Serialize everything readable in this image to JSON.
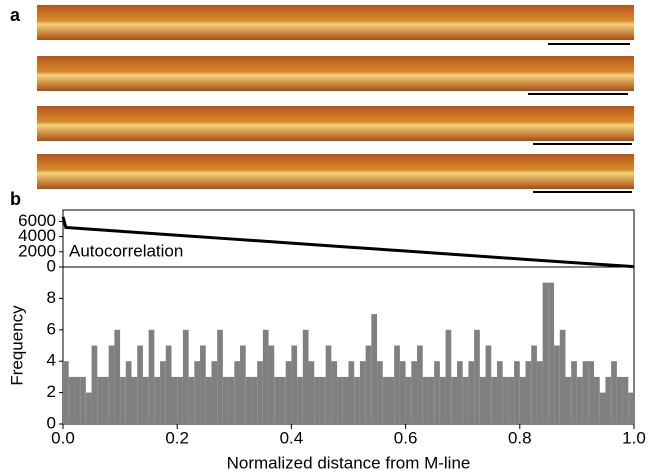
{
  "panel_labels": [
    "a",
    "b"
  ],
  "chart_data": [
    {
      "type": "line",
      "annotation": "Autocorrelation",
      "color": "#000000",
      "x": [
        0,
        0.005,
        0.1,
        0.2,
        0.3,
        0.4,
        0.5,
        0.6,
        0.7,
        0.8,
        0.9,
        1.0
      ],
      "values": [
        6600,
        5200,
        4700,
        4180,
        3660,
        3140,
        2620,
        2100,
        1580,
        1060,
        540,
        50
      ],
      "xlim": [
        0,
        1
      ],
      "ylim": [
        0,
        7500
      ],
      "yticks": [
        0,
        2000,
        4000,
        6000
      ]
    },
    {
      "type": "histogram",
      "x_label": "Normalized distance from M-line",
      "y_label": "Frequency",
      "color": "#808080",
      "bins": [
        0,
        0.01,
        0.02,
        0.03,
        0.04,
        0.05,
        0.06,
        0.07,
        0.08,
        0.09,
        0.1,
        0.11,
        0.12,
        0.13,
        0.14,
        0.15,
        0.16,
        0.17,
        0.18,
        0.19,
        0.2,
        0.21,
        0.22,
        0.23,
        0.24,
        0.25,
        0.26,
        0.27,
        0.28,
        0.29,
        0.3,
        0.31,
        0.32,
        0.33,
        0.34,
        0.35,
        0.36,
        0.37,
        0.38,
        0.39,
        0.4,
        0.41,
        0.42,
        0.43,
        0.44,
        0.45,
        0.46,
        0.47,
        0.48,
        0.49,
        0.5,
        0.51,
        0.52,
        0.53,
        0.54,
        0.55,
        0.56,
        0.57,
        0.58,
        0.59,
        0.6,
        0.61,
        0.62,
        0.63,
        0.64,
        0.65,
        0.66,
        0.67,
        0.68,
        0.69,
        0.7,
        0.71,
        0.72,
        0.73,
        0.74,
        0.75,
        0.76,
        0.77,
        0.78,
        0.79,
        0.8,
        0.81,
        0.82,
        0.83,
        0.84,
        0.85,
        0.86,
        0.87,
        0.88,
        0.89,
        0.9,
        0.91,
        0.92,
        0.93,
        0.94,
        0.95,
        0.96,
        0.97,
        0.98,
        0.99,
        1.0
      ],
      "values": [
        4,
        3,
        3,
        3,
        2,
        5,
        3,
        3,
        5,
        6,
        3,
        4,
        3,
        5,
        3,
        6,
        3,
        4,
        5,
        3,
        3,
        6,
        3,
        4,
        5,
        3,
        4,
        6,
        3,
        3,
        4,
        5,
        3,
        3,
        4,
        6,
        5,
        3,
        3,
        4,
        5,
        3,
        6,
        4,
        3,
        3,
        5,
        4,
        3,
        3,
        4,
        3,
        4,
        5,
        7,
        4,
        3,
        3,
        5,
        4,
        3,
        4,
        5,
        3,
        3,
        4,
        3,
        6,
        3,
        4,
        3,
        4,
        6,
        3,
        5,
        3,
        4,
        3,
        3,
        4,
        3,
        4,
        5,
        4,
        9,
        9,
        5,
        6,
        3,
        4,
        3,
        4,
        4,
        3,
        2,
        3,
        4,
        3,
        3,
        2
      ],
      "xlim": [
        0,
        1
      ],
      "ylim": [
        0,
        10
      ],
      "yticks": [
        0,
        2,
        4,
        6,
        8
      ],
      "xticks": [
        {
          "value": 0,
          "label": "0.0"
        },
        0.2,
        0.4,
        0.6,
        0.8,
        {
          "value": 1,
          "label": "1.0"
        }
      ]
    }
  ]
}
